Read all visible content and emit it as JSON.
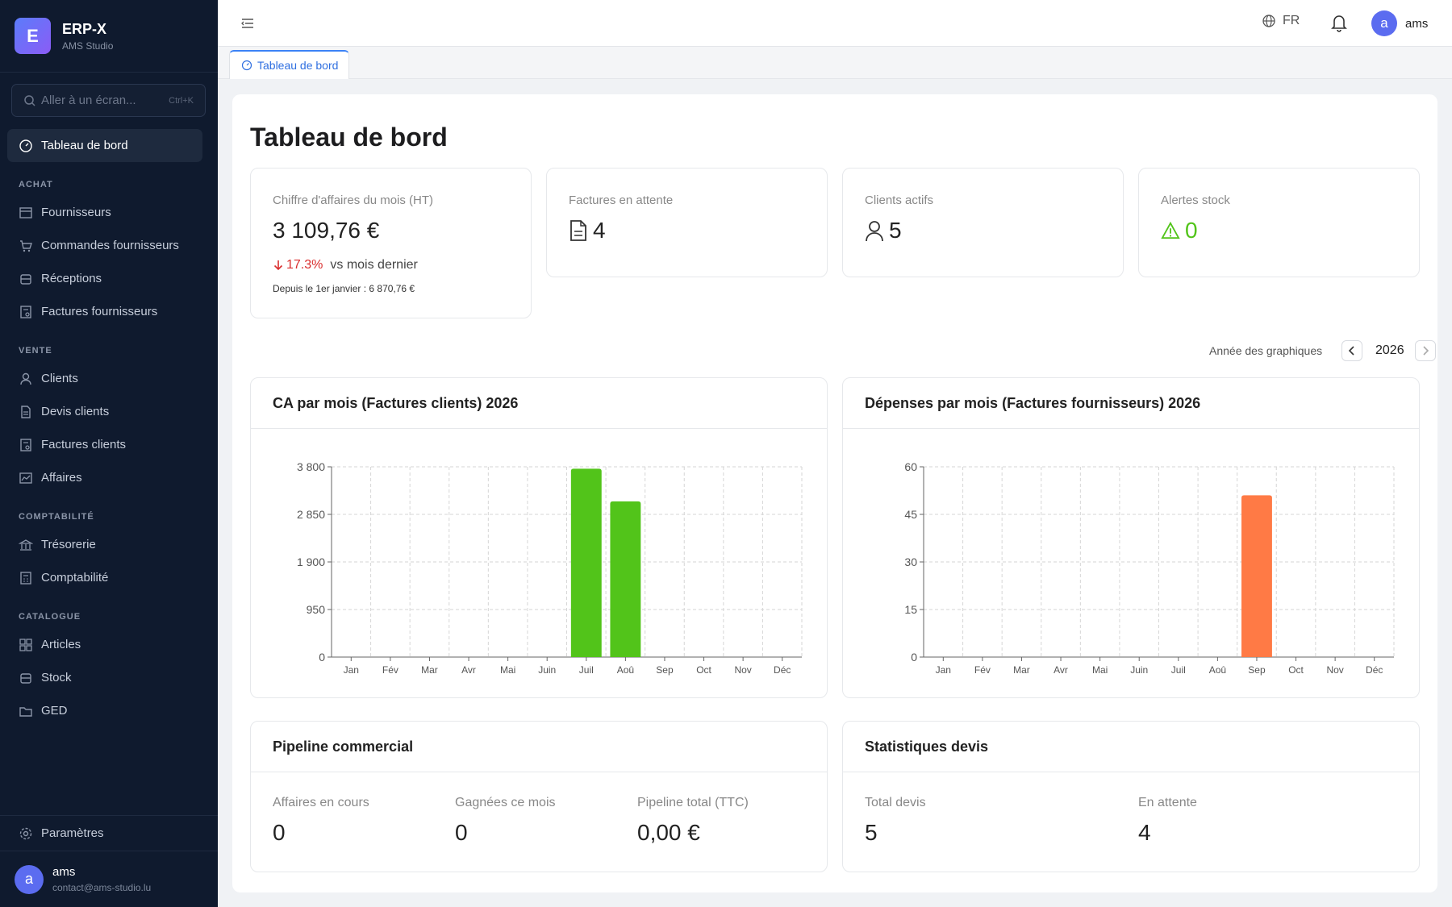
{
  "brand": {
    "initial": "E",
    "title": "ERP-X",
    "subtitle": "AMS Studio"
  },
  "search": {
    "placeholder": "Aller à un écran...",
    "shortcut": "Ctrl+K"
  },
  "nav": {
    "dashboard": "Tableau de bord",
    "sections": {
      "achat": "ACHAT",
      "vente": "VENTE",
      "compta": "COMPTABILITÉ",
      "catalogue": "CATALOGUE"
    },
    "items": {
      "fournisseurs": "Fournisseurs",
      "commandes": "Commandes fournisseurs",
      "receptions": "Réceptions",
      "factures_fournisseurs": "Factures fournisseurs",
      "clients": "Clients",
      "devis": "Devis clients",
      "factures_clients": "Factures clients",
      "affaires": "Affaires",
      "tresorerie": "Trésorerie",
      "comptabilite": "Comptabilité",
      "articles": "Articles",
      "stock": "Stock",
      "ged": "GED"
    },
    "settings": "Paramètres"
  },
  "user": {
    "initial": "a",
    "name": "ams",
    "email": "contact@ams-studio.lu"
  },
  "topbar": {
    "lang": "FR",
    "user_initial": "a",
    "user_name": "ams"
  },
  "tabs": [
    {
      "label": "Tableau de bord"
    }
  ],
  "page": {
    "title": "Tableau de bord"
  },
  "kpis": {
    "ca": {
      "label": "Chiffre d'affaires du mois (HT)",
      "value": "3 109,76 €",
      "trend_pct": "17.3%",
      "trend_text": "vs mois dernier",
      "since": "Depuis le 1er janvier : 6 870,76 €"
    },
    "factures": {
      "label": "Factures en attente",
      "value": "4"
    },
    "clients": {
      "label": "Clients actifs",
      "value": "5"
    },
    "alertes": {
      "label": "Alertes stock",
      "value": "0"
    }
  },
  "year_selector": {
    "label": "Année des graphiques",
    "year": "2026"
  },
  "charts": {
    "ca": {
      "title": "CA par mois (Factures clients) 2026"
    },
    "depenses": {
      "title": "Dépenses par mois (Factures fournisseurs) 2026"
    }
  },
  "chart_data": [
    {
      "type": "bar",
      "title": "CA par mois (Factures clients) 2026",
      "categories": [
        "Jan",
        "Fév",
        "Mar",
        "Avr",
        "Mai",
        "Juin",
        "Juil",
        "Aoû",
        "Sep",
        "Oct",
        "Nov",
        "Déc"
      ],
      "values": [
        0,
        0,
        0,
        0,
        0,
        0,
        3761,
        3110,
        0,
        0,
        0,
        0
      ],
      "ylim": [
        0,
        3800
      ],
      "yticks": [
        0,
        950,
        1900,
        2850,
        3800
      ],
      "ytick_labels": [
        "0",
        "950",
        "1 900",
        "2 850",
        "3 800"
      ],
      "grid": true,
      "color": "#52c41a"
    },
    {
      "type": "bar",
      "title": "Dépenses par mois (Factures fournisseurs) 2026",
      "categories": [
        "Jan",
        "Fév",
        "Mar",
        "Avr",
        "Mai",
        "Juin",
        "Juil",
        "Aoû",
        "Sep",
        "Oct",
        "Nov",
        "Déc"
      ],
      "values": [
        0,
        0,
        0,
        0,
        0,
        0,
        0,
        0,
        51,
        0,
        0,
        0
      ],
      "ylim": [
        0,
        60
      ],
      "yticks": [
        0,
        15,
        30,
        45,
        60
      ],
      "ytick_labels": [
        "0",
        "15",
        "30",
        "45",
        "60"
      ],
      "grid": true,
      "color": "#ff7a45"
    }
  ],
  "pipeline": {
    "title": "Pipeline commercial",
    "stats": [
      {
        "label": "Affaires en cours",
        "value": "0"
      },
      {
        "label": "Gagnées ce mois",
        "value": "0"
      },
      {
        "label": "Pipeline total (TTC)",
        "value": "0,00 €"
      }
    ]
  },
  "devis_stats": {
    "title": "Statistiques devis",
    "stats": [
      {
        "label": "Total devis",
        "value": "5"
      },
      {
        "label": "En attente",
        "value": "4"
      }
    ]
  },
  "colors": {
    "accent": "#3b82f6",
    "sidebar": "#0f1a2e",
    "success": "#52c41a",
    "danger": "#d92d2d",
    "expense": "#ff7a45"
  }
}
